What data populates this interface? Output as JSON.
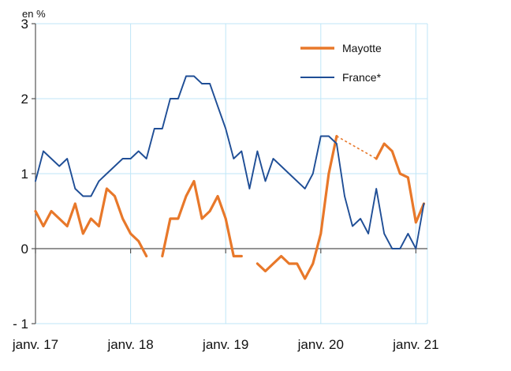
{
  "chart_data": {
    "type": "line",
    "unit_label": "en %",
    "ylim": [
      -1,
      3
    ],
    "yticks": [
      {
        "value": 3,
        "label": "3"
      },
      {
        "value": 2,
        "label": "2"
      },
      {
        "value": 1,
        "label": "1"
      },
      {
        "value": 0,
        "label": "0"
      },
      {
        "value": -1,
        "label": "- 1"
      }
    ],
    "x_range": [
      "2017-01",
      "2021-02"
    ],
    "xticks": [
      {
        "date": "2017-01",
        "label": "janv. 17"
      },
      {
        "date": "2018-01",
        "label": "janv. 18"
      },
      {
        "date": "2019-01",
        "label": "janv. 19"
      },
      {
        "date": "2020-01",
        "label": "janv. 20"
      },
      {
        "date": "2021-01",
        "label": "janv. 21"
      }
    ],
    "grid": true,
    "legend_position": "top-right",
    "colors": {
      "mayotte": "#e8782a",
      "france": "#1f4e96",
      "grid": "#bfe6f7",
      "axis": "#555555"
    },
    "series": [
      {
        "name": "Mayotte",
        "key": "mayotte",
        "points": [
          [
            "2017-01",
            0.5
          ],
          [
            "2017-02",
            0.3
          ],
          [
            "2017-03",
            0.5
          ],
          [
            "2017-04",
            0.4
          ],
          [
            "2017-05",
            0.3
          ],
          [
            "2017-06",
            0.6
          ],
          [
            "2017-07",
            0.2
          ],
          [
            "2017-08",
            0.4
          ],
          [
            "2017-09",
            0.3
          ],
          [
            "2017-10",
            0.8
          ],
          [
            "2017-11",
            0.7
          ],
          [
            "2017-12",
            0.4
          ],
          [
            "2018-01",
            0.2
          ],
          [
            "2018-02",
            0.1
          ],
          [
            "2018-03",
            -0.1
          ],
          null,
          [
            "2018-05",
            -0.1
          ],
          [
            "2018-06",
            0.4
          ],
          [
            "2018-07",
            0.4
          ],
          [
            "2018-08",
            0.7
          ],
          [
            "2018-09",
            0.9
          ],
          [
            "2018-10",
            0.4
          ],
          [
            "2018-11",
            0.5
          ],
          [
            "2018-12",
            0.7
          ],
          [
            "2019-01",
            0.4
          ],
          [
            "2019-02",
            -0.1
          ],
          [
            "2019-03",
            -0.1
          ],
          null,
          [
            "2019-05",
            -0.2
          ],
          [
            "2019-06",
            -0.3
          ],
          [
            "2019-07",
            -0.2
          ],
          [
            "2019-08",
            -0.1
          ],
          [
            "2019-09",
            -0.2
          ],
          [
            "2019-10",
            -0.2
          ],
          [
            "2019-11",
            -0.4
          ],
          [
            "2019-12",
            -0.2
          ],
          [
            "2020-01",
            0.2
          ],
          [
            "2020-02",
            1.0
          ],
          [
            "2020-03",
            1.5
          ],
          null,
          [
            "2020-08",
            1.2
          ],
          [
            "2020-09",
            1.4
          ],
          [
            "2020-10",
            1.3
          ],
          [
            "2020-11",
            1.0
          ],
          [
            "2020-12",
            0.95
          ],
          [
            "2021-01",
            0.35
          ],
          [
            "2021-02",
            0.6
          ]
        ],
        "dotted_segment": [
          [
            "2020-03",
            1.5
          ],
          [
            "2020-08",
            1.2
          ]
        ]
      },
      {
        "name": "France*",
        "key": "france",
        "points": [
          [
            "2017-01",
            0.9
          ],
          [
            "2017-02",
            1.3
          ],
          [
            "2017-03",
            1.2
          ],
          [
            "2017-04",
            1.1
          ],
          [
            "2017-05",
            1.2
          ],
          [
            "2017-06",
            0.8
          ],
          [
            "2017-07",
            0.7
          ],
          [
            "2017-08",
            0.7
          ],
          [
            "2017-09",
            0.9
          ],
          [
            "2017-10",
            1.0
          ],
          [
            "2017-11",
            1.1
          ],
          [
            "2017-12",
            1.2
          ],
          [
            "2018-01",
            1.2
          ],
          [
            "2018-02",
            1.3
          ],
          [
            "2018-03",
            1.2
          ],
          [
            "2018-04",
            1.6
          ],
          [
            "2018-05",
            1.6
          ],
          [
            "2018-06",
            2.0
          ],
          [
            "2018-07",
            2.0
          ],
          [
            "2018-08",
            2.3
          ],
          [
            "2018-09",
            2.3
          ],
          [
            "2018-10",
            2.2
          ],
          [
            "2018-11",
            2.2
          ],
          [
            "2018-12",
            1.9
          ],
          [
            "2019-01",
            1.6
          ],
          [
            "2019-02",
            1.2
          ],
          [
            "2019-03",
            1.3
          ],
          [
            "2019-04",
            0.8
          ],
          [
            "2019-05",
            1.3
          ],
          [
            "2019-06",
            0.9
          ],
          [
            "2019-07",
            1.2
          ],
          [
            "2019-08",
            1.1
          ],
          [
            "2019-09",
            1.0
          ],
          [
            "2019-10",
            0.9
          ],
          [
            "2019-11",
            0.8
          ],
          [
            "2019-12",
            1.0
          ],
          [
            "2020-01",
            1.5
          ],
          [
            "2020-02",
            1.5
          ],
          [
            "2020-03",
            1.4
          ],
          [
            "2020-04",
            0.7
          ],
          [
            "2020-05",
            0.3
          ],
          [
            "2020-06",
            0.4
          ],
          [
            "2020-07",
            0.2
          ],
          [
            "2020-08",
            0.8
          ],
          [
            "2020-09",
            0.2
          ],
          [
            "2020-10",
            0.0
          ],
          [
            "2020-11",
            0.0
          ],
          [
            "2020-12",
            0.2
          ],
          [
            "2021-01",
            0.0
          ],
          [
            "2021-02",
            0.6
          ]
        ]
      }
    ]
  }
}
